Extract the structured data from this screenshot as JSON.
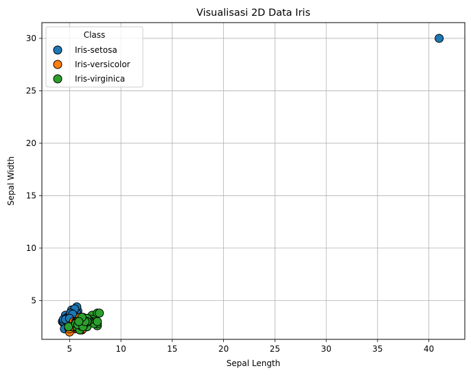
{
  "chart_data": {
    "type": "scatter",
    "title": "Visualisasi 2D Data Iris",
    "xlabel": "Sepal Length",
    "ylabel": "Sepal Width",
    "xlim": [
      2.3,
      43.5
    ],
    "ylim": [
      1.3,
      31.5
    ],
    "xticks": [
      5,
      10,
      15,
      20,
      25,
      30,
      35,
      40
    ],
    "yticks": [
      5,
      10,
      15,
      20,
      25,
      30
    ],
    "grid": true,
    "legend": {
      "title": "Class",
      "placement": "top-left"
    },
    "series": [
      {
        "name": "Iris-setosa",
        "color": "#1f77b4",
        "points": [
          [
            5.1,
            3.5
          ],
          [
            4.9,
            3.0
          ],
          [
            4.7,
            3.2
          ],
          [
            4.6,
            3.1
          ],
          [
            5.0,
            3.6
          ],
          [
            5.4,
            3.9
          ],
          [
            4.6,
            3.4
          ],
          [
            5.0,
            3.4
          ],
          [
            4.4,
            2.9
          ],
          [
            4.9,
            3.1
          ],
          [
            5.4,
            3.7
          ],
          [
            4.8,
            3.4
          ],
          [
            4.8,
            3.0
          ],
          [
            4.3,
            3.0
          ],
          [
            5.8,
            4.0
          ],
          [
            5.7,
            4.4
          ],
          [
            5.4,
            3.9
          ],
          [
            5.1,
            3.5
          ],
          [
            5.7,
            3.8
          ],
          [
            5.1,
            3.8
          ],
          [
            5.4,
            3.4
          ],
          [
            5.1,
            3.7
          ],
          [
            4.6,
            3.6
          ],
          [
            5.1,
            3.3
          ],
          [
            4.8,
            3.4
          ],
          [
            5.0,
            3.0
          ],
          [
            5.0,
            3.4
          ],
          [
            5.2,
            3.5
          ],
          [
            5.2,
            3.4
          ],
          [
            4.7,
            3.2
          ],
          [
            4.8,
            3.1
          ],
          [
            5.4,
            3.4
          ],
          [
            5.2,
            4.1
          ],
          [
            5.5,
            4.2
          ],
          [
            4.9,
            3.1
          ],
          [
            5.0,
            3.2
          ],
          [
            5.5,
            3.5
          ],
          [
            4.4,
            3.0
          ],
          [
            5.1,
            3.4
          ],
          [
            5.0,
            3.5
          ],
          [
            4.5,
            2.3
          ],
          [
            4.4,
            3.2
          ],
          [
            5.0,
            3.5
          ],
          [
            5.1,
            3.8
          ],
          [
            4.8,
            3.0
          ],
          [
            5.1,
            3.8
          ],
          [
            4.6,
            3.2
          ],
          [
            5.3,
            3.7
          ],
          [
            5.0,
            3.3
          ],
          [
            41.0,
            30.0
          ]
        ]
      },
      {
        "name": "Iris-versicolor",
        "color": "#ff7f0e",
        "points": [
          [
            7.0,
            3.2
          ],
          [
            6.4,
            3.2
          ],
          [
            6.9,
            3.1
          ],
          [
            5.5,
            2.3
          ],
          [
            6.5,
            2.8
          ],
          [
            5.7,
            2.8
          ],
          [
            6.3,
            3.3
          ],
          [
            4.9,
            2.4
          ],
          [
            6.6,
            2.9
          ],
          [
            5.2,
            2.7
          ],
          [
            5.0,
            2.0
          ],
          [
            5.9,
            3.0
          ],
          [
            6.0,
            2.2
          ],
          [
            6.1,
            2.9
          ],
          [
            5.6,
            2.9
          ],
          [
            6.7,
            3.1
          ],
          [
            5.6,
            3.0
          ],
          [
            5.8,
            2.7
          ],
          [
            6.2,
            2.2
          ],
          [
            5.6,
            2.5
          ],
          [
            5.9,
            3.2
          ],
          [
            6.1,
            2.8
          ],
          [
            6.3,
            2.5
          ],
          [
            6.1,
            2.8
          ],
          [
            6.4,
            2.9
          ],
          [
            6.6,
            3.0
          ],
          [
            6.8,
            2.8
          ],
          [
            6.7,
            3.0
          ],
          [
            6.0,
            2.9
          ],
          [
            5.7,
            2.6
          ],
          [
            5.5,
            2.4
          ],
          [
            5.5,
            2.4
          ],
          [
            5.8,
            2.7
          ],
          [
            6.0,
            2.7
          ],
          [
            5.4,
            3.0
          ],
          [
            6.0,
            3.4
          ],
          [
            6.7,
            3.1
          ],
          [
            6.3,
            2.3
          ],
          [
            5.6,
            3.0
          ],
          [
            5.5,
            2.5
          ],
          [
            5.5,
            2.6
          ],
          [
            6.1,
            3.0
          ],
          [
            5.8,
            2.6
          ],
          [
            5.0,
            2.3
          ],
          [
            5.6,
            2.7
          ],
          [
            5.7,
            3.0
          ],
          [
            5.7,
            2.9
          ],
          [
            6.2,
            2.9
          ],
          [
            5.1,
            2.5
          ],
          [
            5.7,
            2.8
          ]
        ]
      },
      {
        "name": "Iris-virginica",
        "color": "#2ca02c",
        "points": [
          [
            6.3,
            3.3
          ],
          [
            5.8,
            2.7
          ],
          [
            7.1,
            3.0
          ],
          [
            6.3,
            2.9
          ],
          [
            6.5,
            3.0
          ],
          [
            7.6,
            3.0
          ],
          [
            4.9,
            2.5
          ],
          [
            7.3,
            2.9
          ],
          [
            6.7,
            2.5
          ],
          [
            7.2,
            3.6
          ],
          [
            6.5,
            3.2
          ],
          [
            6.4,
            2.7
          ],
          [
            6.8,
            3.0
          ],
          [
            5.7,
            2.5
          ],
          [
            5.8,
            2.8
          ],
          [
            6.4,
            3.2
          ],
          [
            6.5,
            3.0
          ],
          [
            7.7,
            3.8
          ],
          [
            7.7,
            2.6
          ],
          [
            6.0,
            2.2
          ],
          [
            6.9,
            3.2
          ],
          [
            5.6,
            2.8
          ],
          [
            7.7,
            2.8
          ],
          [
            6.3,
            2.7
          ],
          [
            6.7,
            3.3
          ],
          [
            7.2,
            3.2
          ],
          [
            6.2,
            2.8
          ],
          [
            6.1,
            3.0
          ],
          [
            6.4,
            2.8
          ],
          [
            7.2,
            3.0
          ],
          [
            7.4,
            2.8
          ],
          [
            7.9,
            3.8
          ],
          [
            6.4,
            2.8
          ],
          [
            6.3,
            2.8
          ],
          [
            6.1,
            2.6
          ],
          [
            7.7,
            3.0
          ],
          [
            6.3,
            3.4
          ],
          [
            6.4,
            3.1
          ],
          [
            6.0,
            3.0
          ],
          [
            6.9,
            3.1
          ],
          [
            6.7,
            3.1
          ],
          [
            6.9,
            3.1
          ],
          [
            5.8,
            2.7
          ],
          [
            6.8,
            3.2
          ],
          [
            6.7,
            3.3
          ],
          [
            6.7,
            3.0
          ],
          [
            6.3,
            2.5
          ],
          [
            6.5,
            3.0
          ],
          [
            6.2,
            3.4
          ],
          [
            5.9,
            3.0
          ]
        ]
      }
    ]
  }
}
